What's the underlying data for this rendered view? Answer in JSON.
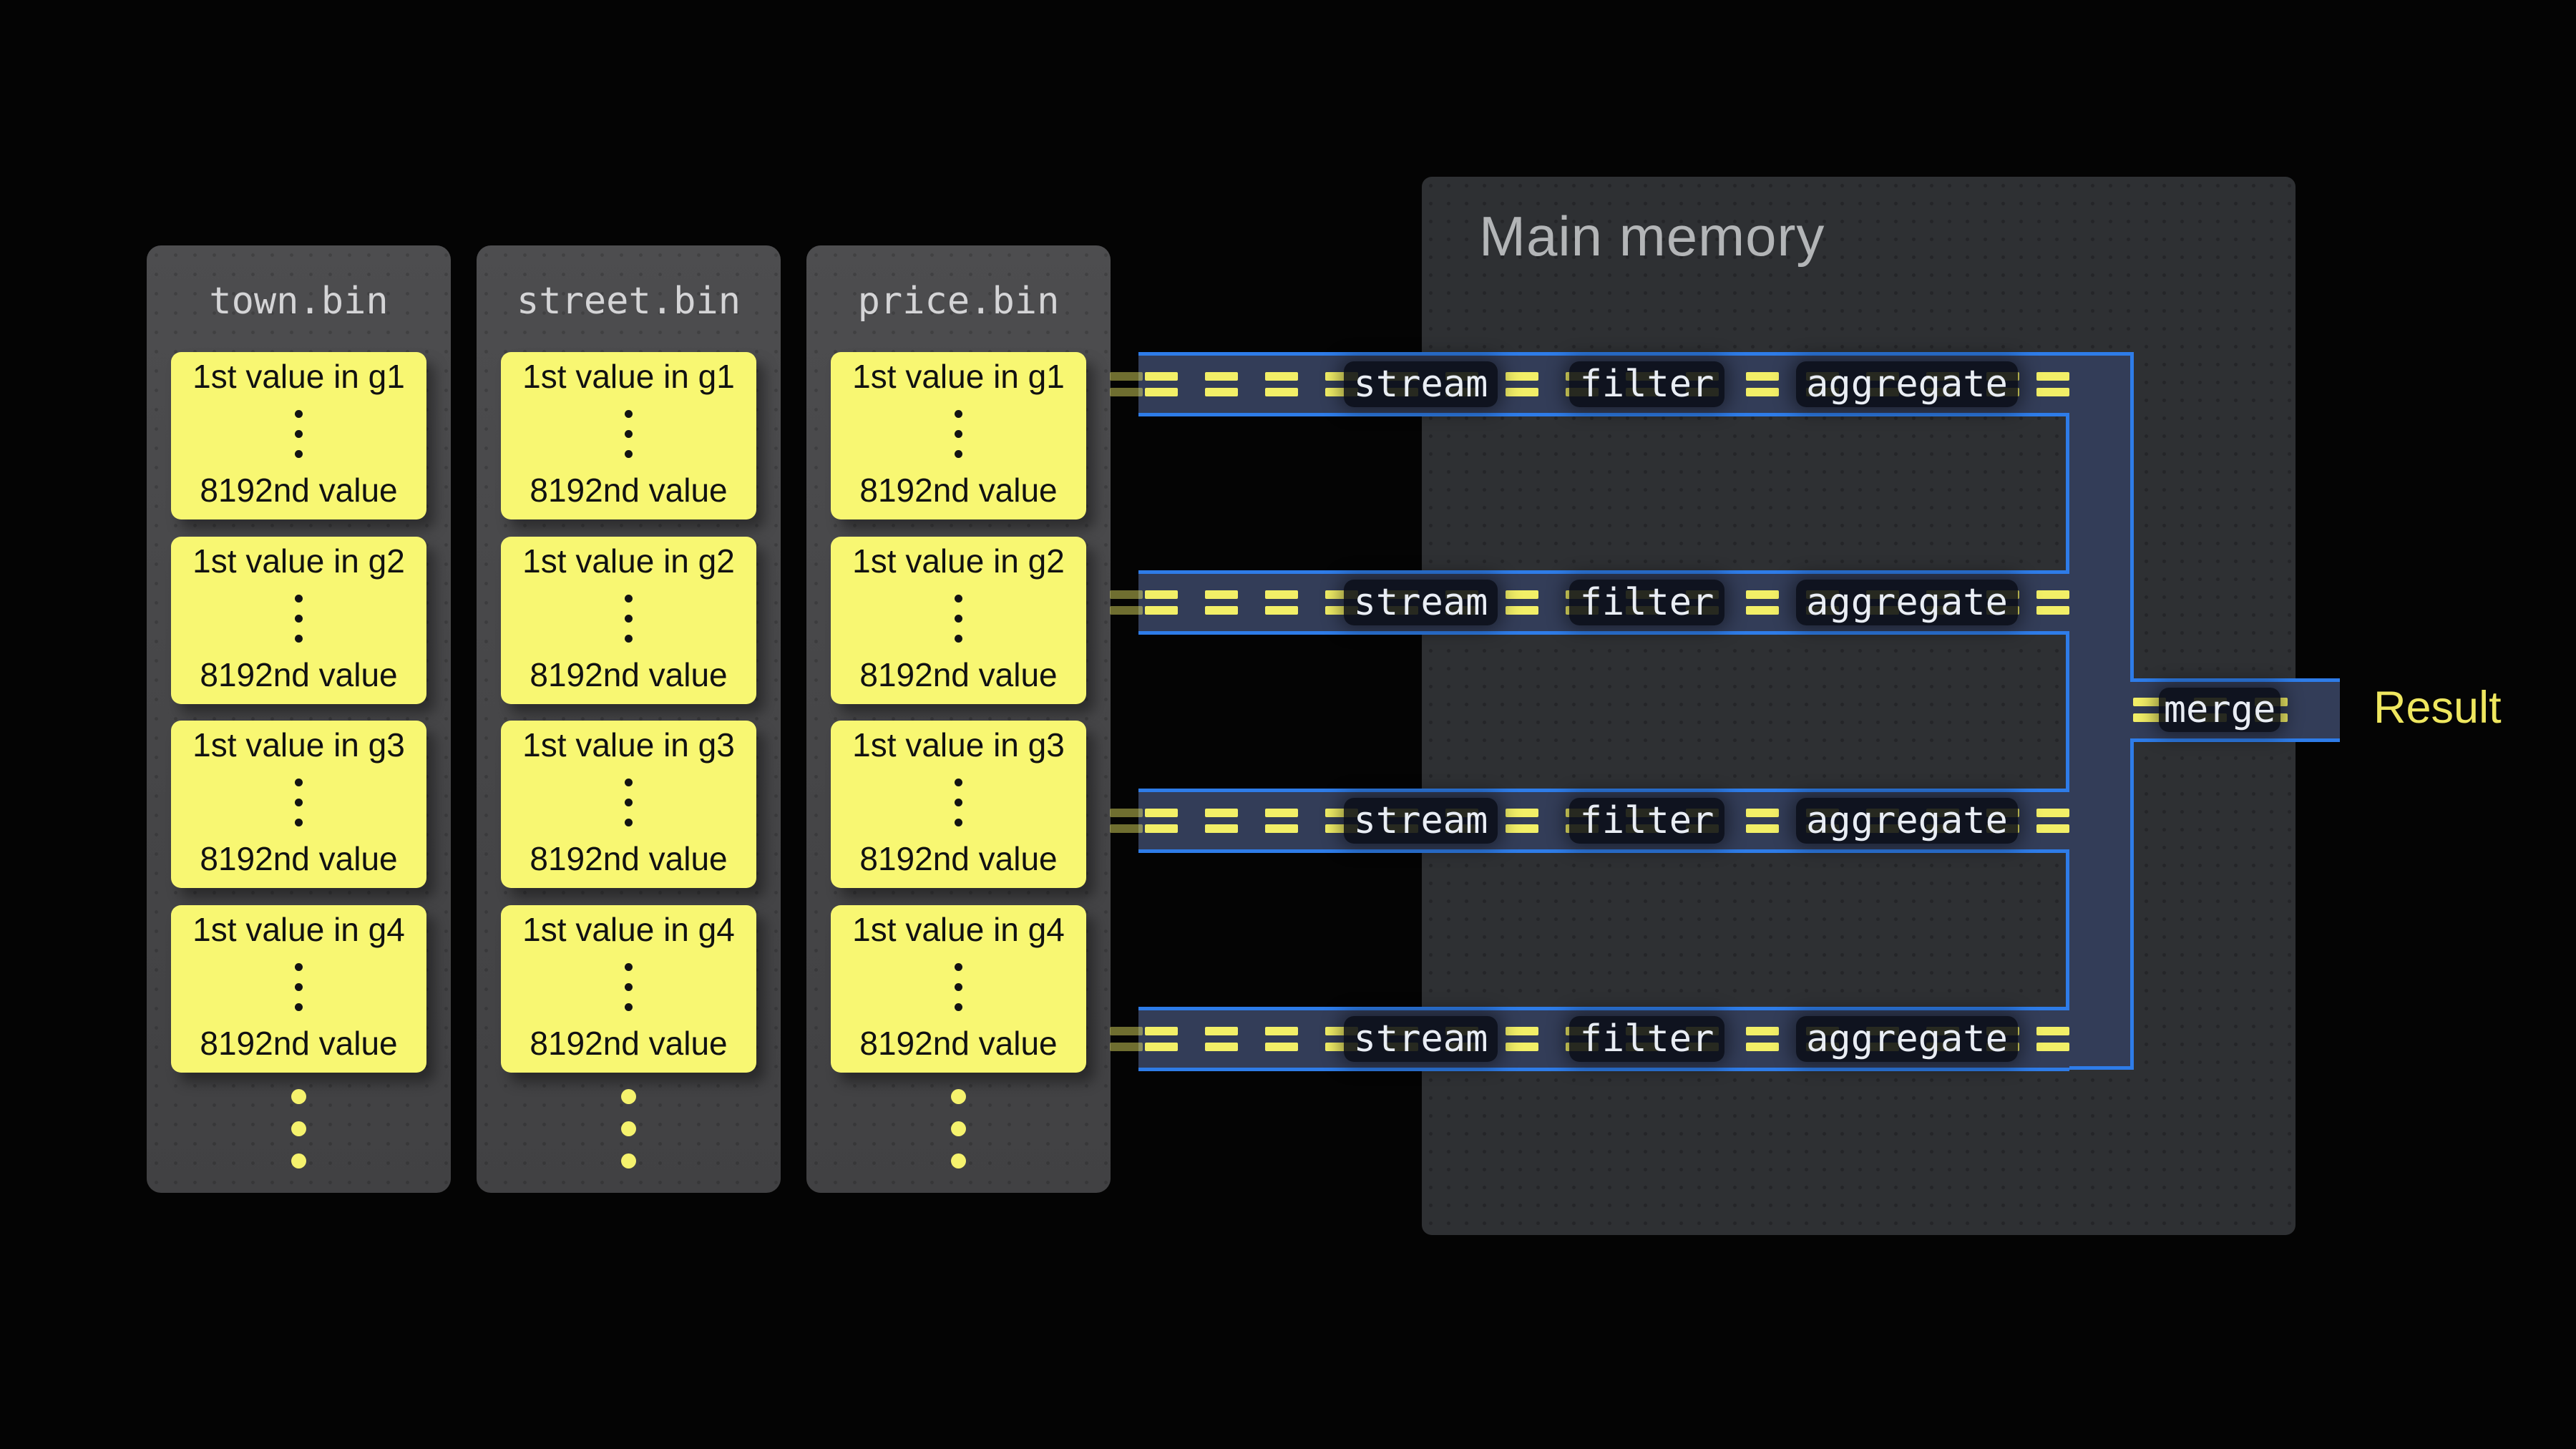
{
  "files": [
    {
      "name": "town.bin",
      "groups": [
        {
          "first": "1st value in g1",
          "last": "8192nd value"
        },
        {
          "first": "1st value in g2",
          "last": "8192nd value"
        },
        {
          "first": "1st value in g3",
          "last": "8192nd value"
        },
        {
          "first": "1st value in g4",
          "last": "8192nd value"
        }
      ]
    },
    {
      "name": "street.bin",
      "groups": [
        {
          "first": "1st value in g1",
          "last": "8192nd value"
        },
        {
          "first": "1st value in g2",
          "last": "8192nd value"
        },
        {
          "first": "1st value in g3",
          "last": "8192nd value"
        },
        {
          "first": "1st value in g4",
          "last": "8192nd value"
        }
      ]
    },
    {
      "name": "price.bin",
      "groups": [
        {
          "first": "1st value in g1",
          "last": "8192nd value"
        },
        {
          "first": "1st value in g2",
          "last": "8192nd value"
        },
        {
          "first": "1st value in g3",
          "last": "8192nd value"
        },
        {
          "first": "1st value in g4",
          "last": "8192nd value"
        }
      ]
    }
  ],
  "memory": {
    "title": "Main memory"
  },
  "pipelines": [
    {
      "ops": [
        "stream",
        "filter",
        "aggregate"
      ]
    },
    {
      "ops": [
        "stream",
        "filter",
        "aggregate"
      ]
    },
    {
      "ops": [
        "stream",
        "filter",
        "aggregate"
      ]
    },
    {
      "ops": [
        "stream",
        "filter",
        "aggregate"
      ]
    }
  ],
  "merge": {
    "label": "merge"
  },
  "result": {
    "label": "Result"
  },
  "colors": {
    "background": "#040404",
    "file_card": "#48484a",
    "cell_yellow": "#f8f772",
    "band_fill": "#333d58",
    "pipe_border_blue": "#2e7ce8",
    "equals_yellow": "#f2ef67",
    "memory_bg": "#2e3033",
    "op_box": "#0a0e17",
    "memory_title_gray": "#b3b5b7",
    "result_yellow": "#efe75f"
  }
}
